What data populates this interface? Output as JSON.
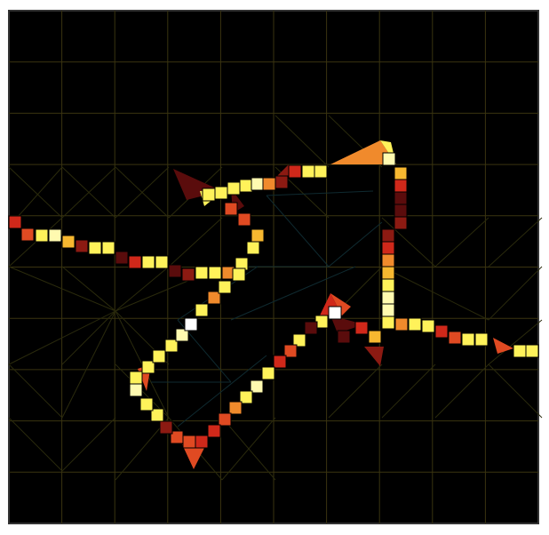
{
  "figure": {
    "background": "#000000",
    "frame_color": "#222222",
    "grid_color": "#3a3410",
    "mesh_color": "#2a2a0c",
    "inner_mesh_color": "#0f2a30"
  },
  "palette": {
    "dark": "#5a0c0c",
    "darkred": "#8c1a12",
    "red": "#d0281a",
    "redorange": "#e04a22",
    "orange": "#f08a2c",
    "amber": "#f7b830",
    "yellow": "#fff25a",
    "paleyellow": "#fffab0",
    "white": "#ffffff"
  }
}
